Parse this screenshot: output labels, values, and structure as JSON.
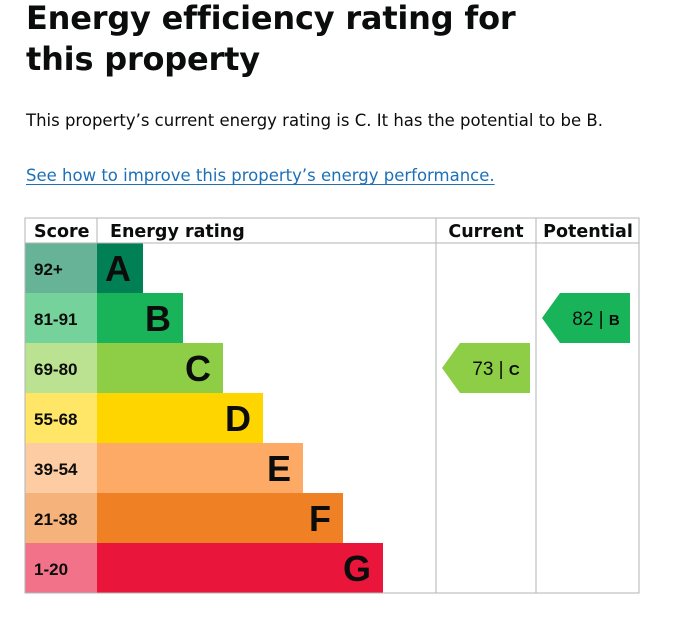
{
  "page": {
    "title": "Energy efficiency rating for this property",
    "summary": "This property’s current energy rating is C. It has the potential to be B.",
    "link_text": "See how to improve this property’s energy performance."
  },
  "chart_data": {
    "type": "table",
    "headers": {
      "score": "Score",
      "rating": "Energy rating",
      "current": "Current",
      "potential": "Potential"
    },
    "bands": [
      {
        "letter": "A",
        "score": "92+",
        "color": "#008054",
        "score_bg": "#66b398"
      },
      {
        "letter": "B",
        "score": "81-91",
        "color": "#19b459",
        "score_bg": "#75d29b"
      },
      {
        "letter": "C",
        "score": "69-80",
        "color": "#8dce46",
        "score_bg": "#bbe290"
      },
      {
        "letter": "D",
        "score": "55-68",
        "color": "#ffd500",
        "score_bg": "#ffe666"
      },
      {
        "letter": "E",
        "score": "39-54",
        "color": "#fcaa65",
        "score_bg": "#fdcca3"
      },
      {
        "letter": "F",
        "score": "21-38",
        "color": "#ef8023",
        "score_bg": "#f5b37b"
      },
      {
        "letter": "G",
        "score": "1-20",
        "color": "#e9153b",
        "score_bg": "#f27389"
      }
    ],
    "current": {
      "value": 73,
      "band": "C"
    },
    "potential": {
      "value": 82,
      "band": "B"
    }
  }
}
